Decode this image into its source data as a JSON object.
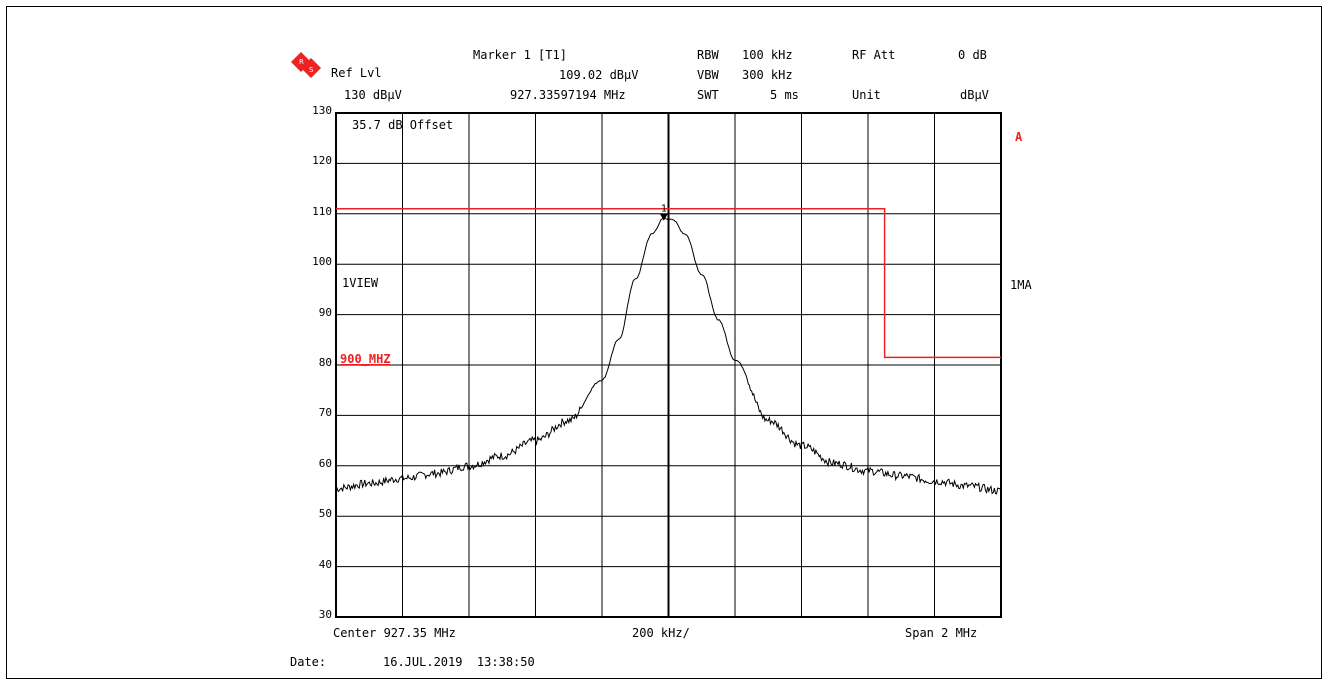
{
  "header": {
    "ref_lvl_label": "Ref Lvl",
    "ref_lvl_value": "130 dBµV",
    "marker_label": "Marker 1 [T1]",
    "marker_level": "109.02 dBµV",
    "marker_freq": "927.33597194 MHz",
    "rbw_label": "RBW",
    "rbw_value": "100 kHz",
    "vbw_label": "VBW",
    "vbw_value": "300 kHz",
    "swt_label": "SWT",
    "swt_value": "5 ms",
    "rfatt_label": "RF Att",
    "rfatt_value": "0 dB",
    "unit_label": "Unit",
    "unit_value": "dBµV"
  },
  "side": {
    "trace_a": "A",
    "detector": "1MA"
  },
  "annotations": {
    "offset": "35.7 dB Offset",
    "view": "1VIEW",
    "limit_name": "900_MHZ",
    "marker_number": "1"
  },
  "footer": {
    "center": "Center 927.35 MHz",
    "div": "200 kHz/",
    "span": "Span 2 MHz",
    "date_label": "Date:",
    "date_value": "16.JUL.2019  13:38:50"
  },
  "colors": {
    "trace": "#000000",
    "limit_line": "#ee2222",
    "grid": "#000000"
  },
  "chart_data": {
    "type": "line",
    "title": "",
    "xlabel": "",
    "ylabel": "",
    "x_unit": "MHz",
    "y_unit": "dBµV",
    "xlim": [
      926.35,
      928.35
    ],
    "ylim": [
      30,
      130
    ],
    "yticks": [
      130,
      120,
      110,
      100,
      90,
      80,
      70,
      60,
      50,
      40,
      30
    ],
    "grid": true,
    "series": [
      {
        "x": [
          926.35,
          926.45,
          926.55,
          926.65,
          926.75,
          926.85,
          926.95,
          927.05,
          927.15,
          927.2,
          927.25,
          927.3,
          927.335,
          927.36,
          927.4,
          927.45,
          927.5,
          927.55,
          927.65,
          927.75,
          927.85,
          927.95,
          928.05,
          928.15,
          928.25,
          928.35
        ],
        "values": [
          55.5,
          56.5,
          57.5,
          58.5,
          60.0,
          62.0,
          65.0,
          69.0,
          77.0,
          85.0,
          97.0,
          106.0,
          109.02,
          109.0,
          106.0,
          98.0,
          89.0,
          81.0,
          69.0,
          64.0,
          60.5,
          59.0,
          58.0,
          57.0,
          56.0,
          55.0
        ]
      }
    ],
    "limit_line": {
      "name": "900_MHZ",
      "x": [
        926.35,
        928.0,
        928.0,
        928.35
      ],
      "values": [
        111,
        111,
        81.5,
        81.5
      ]
    },
    "marker": {
      "name": "1",
      "x": 927.33597194,
      "y": 109.02
    }
  }
}
